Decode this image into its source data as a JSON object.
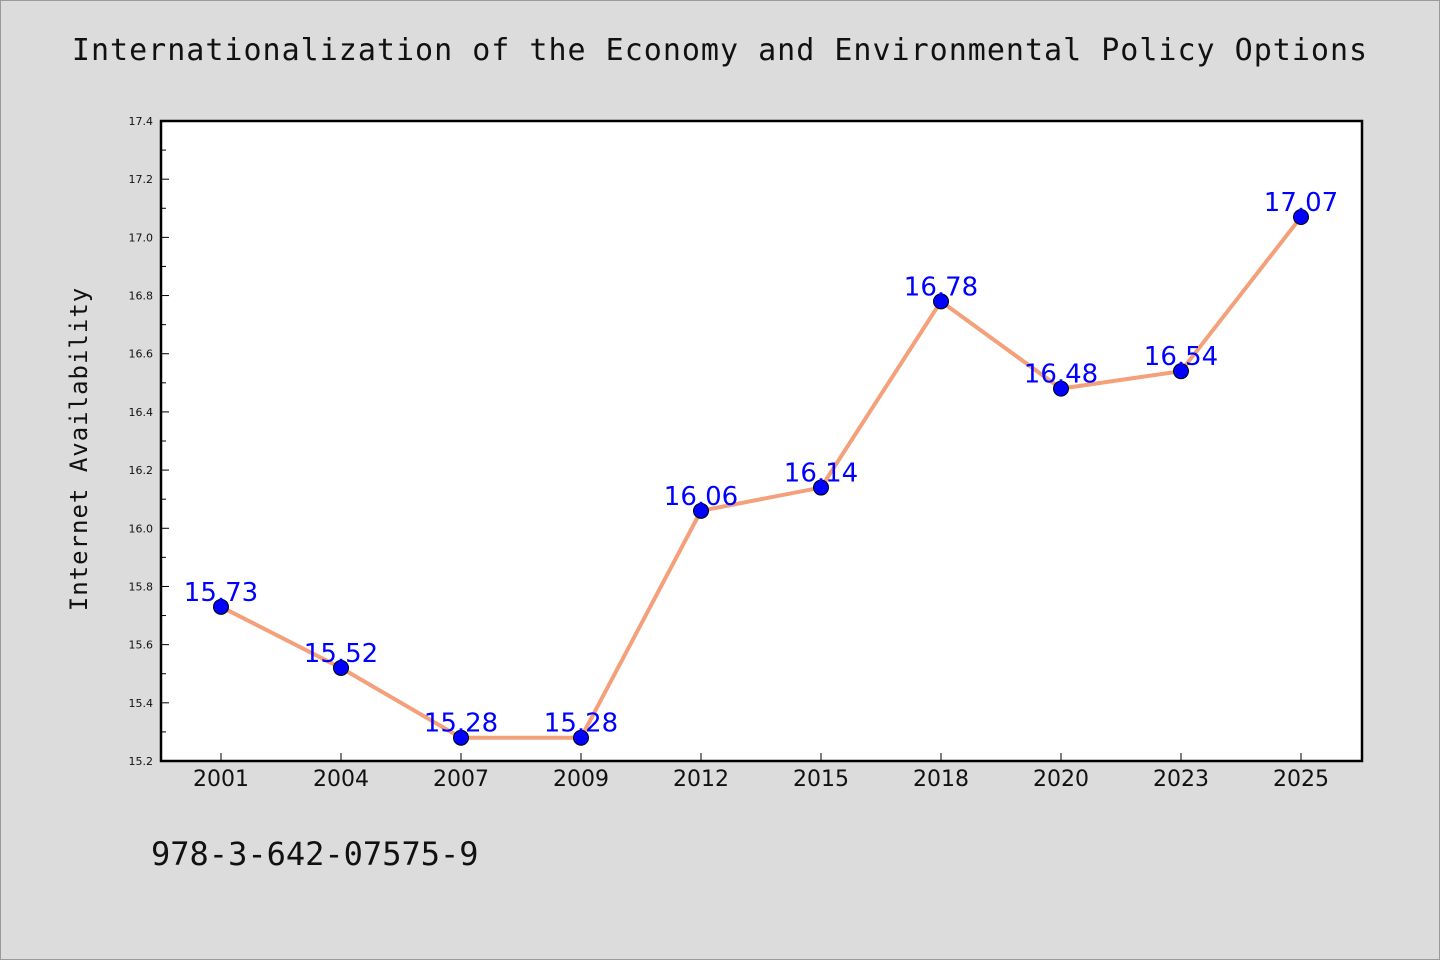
{
  "chart_data": {
    "type": "line",
    "title": "Internationalization of the Economy and Environmental Policy Options",
    "ylabel": "Internet Availability",
    "xlabel": "",
    "categories": [
      "2001",
      "2004",
      "2007",
      "2009",
      "2012",
      "2015",
      "2018",
      "2020",
      "2023",
      "2025"
    ],
    "values": [
      15.73,
      15.52,
      15.28,
      15.28,
      16.06,
      16.14,
      16.78,
      16.48,
      16.54,
      17.07
    ],
    "data_labels": [
      "15.73",
      "15.52",
      "15.28",
      "15.28",
      "16.06",
      "16.14",
      "16.78",
      "16.48",
      "16.54",
      "17.07"
    ],
    "ylim": [
      15.2,
      17.4
    ],
    "yticks": [
      "15.2",
      "15.4",
      "15.6",
      "15.8",
      "16.0",
      "16.2",
      "16.4",
      "16.6",
      "16.8",
      "17.0",
      "17.2",
      "17.4"
    ],
    "grid": false,
    "line_color": "#f4a07a",
    "marker_color": "#0000ff",
    "label_color": "#0000ff"
  },
  "footer": {
    "isbn": "978-3-642-07575-9"
  }
}
